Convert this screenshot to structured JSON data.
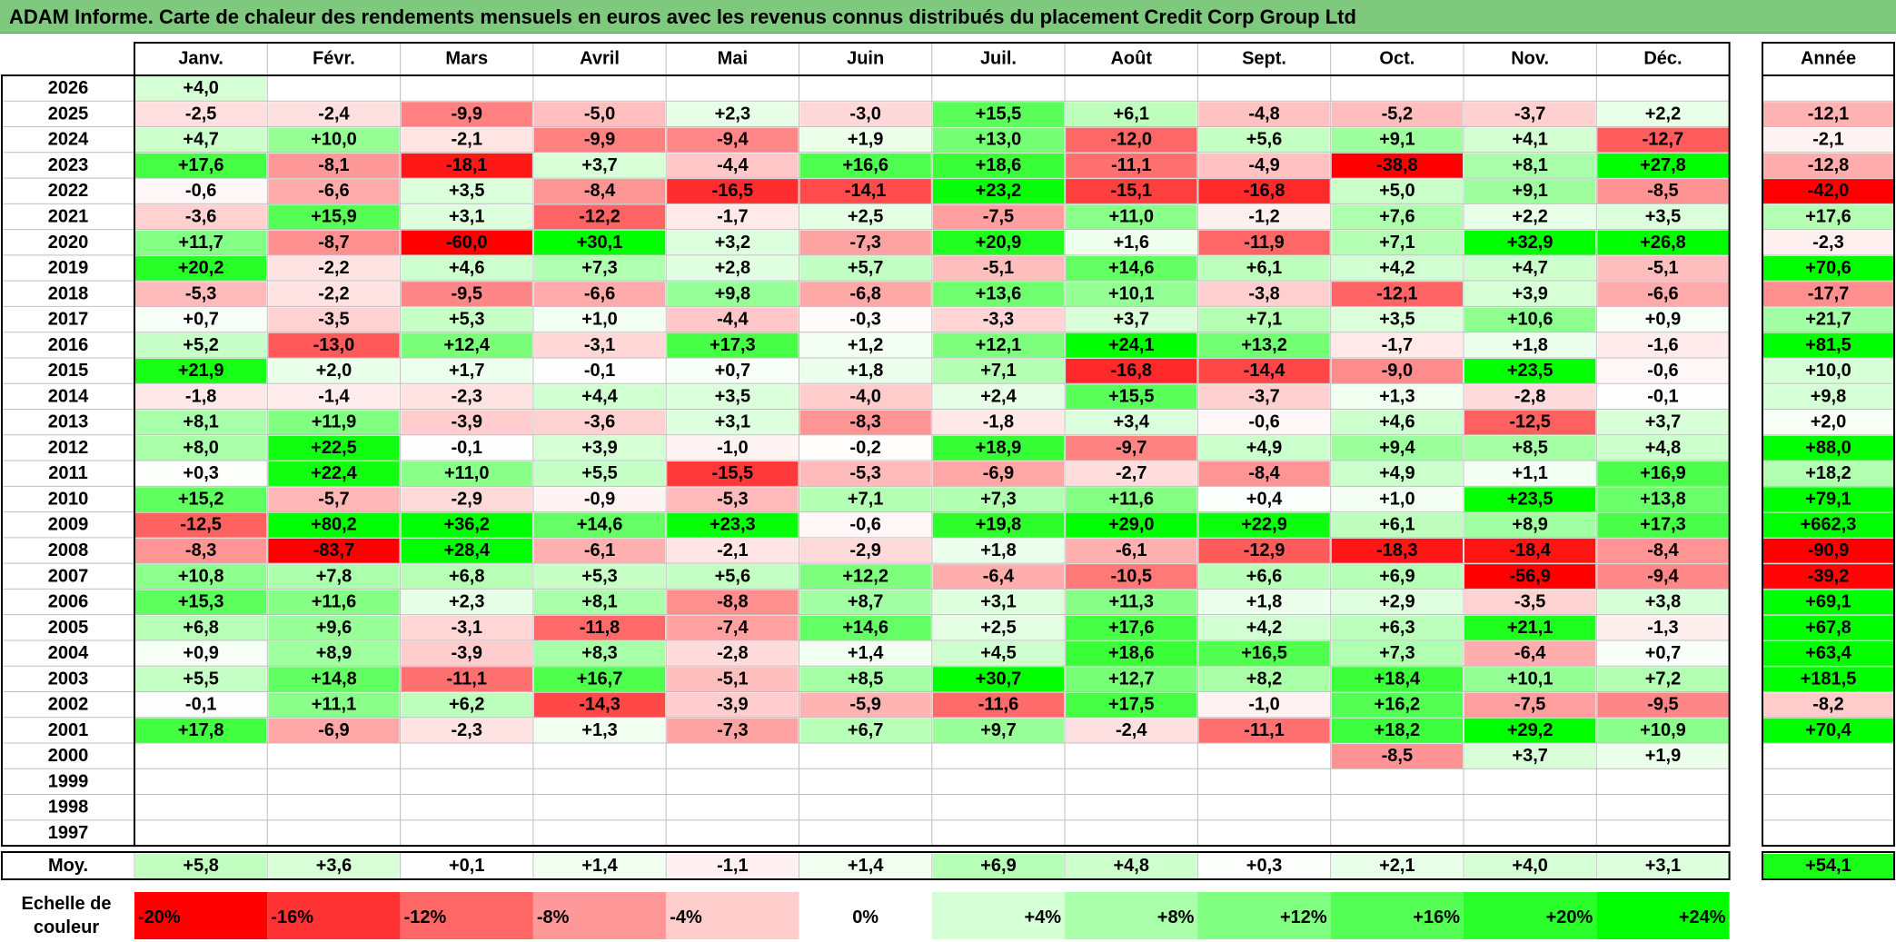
{
  "title": "ADAM Informe. Carte de chaleur des rendements mensuels en euros avec les revenus connus distribués du placement Credit Corp Group Ltd",
  "colors": {
    "title_bar": "#7fc97f",
    "negative_max": "#ff0000",
    "neutral": "#ffffff",
    "positive_max": "#00ff00"
  },
  "chart_data": {
    "type": "heatmap",
    "title": "ADAM Informe. Carte de chaleur des rendements mensuels en euros avec les revenus connus distribués du placement Credit Corp Group Ltd",
    "months": [
      "Janv.",
      "Févr.",
      "Mars",
      "Avril",
      "Mai",
      "Juin",
      "Juil.",
      "Août",
      "Sept.",
      "Oct.",
      "Nov.",
      "Déc."
    ],
    "annual_header": "Année",
    "rows": [
      {
        "year": "2026",
        "values": [
          "+4,0",
          "",
          "",
          "",
          "",
          "",
          "",
          "",
          "",
          "",
          "",
          ""
        ],
        "annual": ""
      },
      {
        "year": "2025",
        "values": [
          "-2,5",
          "-2,4",
          "-9,9",
          "-5,0",
          "+2,3",
          "-3,0",
          "+15,5",
          "+6,1",
          "-4,8",
          "-5,2",
          "-3,7",
          "+2,2"
        ],
        "annual": "-12,1"
      },
      {
        "year": "2024",
        "values": [
          "+4,7",
          "+10,0",
          "-2,1",
          "-9,9",
          "-9,4",
          "+1,9",
          "+13,0",
          "-12,0",
          "+5,6",
          "+9,1",
          "+4,1",
          "-12,7"
        ],
        "annual": "-2,1"
      },
      {
        "year": "2023",
        "values": [
          "+17,6",
          "-8,1",
          "-18,1",
          "+3,7",
          "-4,4",
          "+16,6",
          "+18,6",
          "-11,1",
          "-4,9",
          "-38,8",
          "+8,1",
          "+27,8"
        ],
        "annual": "-12,8"
      },
      {
        "year": "2022",
        "values": [
          "-0,6",
          "-6,6",
          "+3,5",
          "-8,4",
          "-16,5",
          "-14,1",
          "+23,2",
          "-15,1",
          "-16,8",
          "+5,0",
          "+9,1",
          "-8,5"
        ],
        "annual": "-42,0"
      },
      {
        "year": "2021",
        "values": [
          "-3,6",
          "+15,9",
          "+3,1",
          "-12,2",
          "-1,7",
          "+2,5",
          "-7,5",
          "+11,0",
          "-1,2",
          "+7,6",
          "+2,2",
          "+3,5"
        ],
        "annual": "+17,6"
      },
      {
        "year": "2020",
        "values": [
          "+11,7",
          "-8,7",
          "-60,0",
          "+30,1",
          "+3,2",
          "-7,3",
          "+20,9",
          "+1,6",
          "-11,9",
          "+7,1",
          "+32,9",
          "+26,8"
        ],
        "annual": "-2,3"
      },
      {
        "year": "2019",
        "values": [
          "+20,2",
          "-2,2",
          "+4,6",
          "+7,3",
          "+2,8",
          "+5,7",
          "-5,1",
          "+14,6",
          "+6,1",
          "+4,2",
          "+4,7",
          "-5,1"
        ],
        "annual": "+70,6"
      },
      {
        "year": "2018",
        "values": [
          "-5,3",
          "-2,2",
          "-9,5",
          "-6,6",
          "+9,8",
          "-6,8",
          "+13,6",
          "+10,1",
          "-3,8",
          "-12,1",
          "+3,9",
          "-6,6"
        ],
        "annual": "-17,7"
      },
      {
        "year": "2017",
        "values": [
          "+0,7",
          "-3,5",
          "+5,3",
          "+1,0",
          "-4,4",
          "-0,3",
          "-3,3",
          "+3,7",
          "+7,1",
          "+3,5",
          "+10,6",
          "+0,9"
        ],
        "annual": "+21,7"
      },
      {
        "year": "2016",
        "values": [
          "+5,2",
          "-13,0",
          "+12,4",
          "-3,1",
          "+17,3",
          "+1,2",
          "+12,1",
          "+24,1",
          "+13,2",
          "-1,7",
          "+1,8",
          "-1,6"
        ],
        "annual": "+81,5"
      },
      {
        "year": "2015",
        "values": [
          "+21,9",
          "+2,0",
          "+1,7",
          "-0,1",
          "+0,7",
          "+1,8",
          "+7,1",
          "-16,8",
          "-14,4",
          "-9,0",
          "+23,5",
          "-0,6"
        ],
        "annual": "+10,0"
      },
      {
        "year": "2014",
        "values": [
          "-1,8",
          "-1,4",
          "-2,3",
          "+4,4",
          "+3,5",
          "-4,0",
          "+2,4",
          "+15,5",
          "-3,7",
          "+1,3",
          "-2,8",
          "-0,1"
        ],
        "annual": "+9,8"
      },
      {
        "year": "2013",
        "values": [
          "+8,1",
          "+11,9",
          "-3,9",
          "-3,6",
          "+3,1",
          "-8,3",
          "-1,8",
          "+3,4",
          "-0,6",
          "+4,6",
          "-12,5",
          "+3,7"
        ],
        "annual": "+2,0"
      },
      {
        "year": "2012",
        "values": [
          "+8,0",
          "+22,5",
          "-0,1",
          "+3,9",
          "-1,0",
          "-0,2",
          "+18,9",
          "-9,7",
          "+4,9",
          "+9,4",
          "+8,5",
          "+4,8"
        ],
        "annual": "+88,0"
      },
      {
        "year": "2011",
        "values": [
          "+0,3",
          "+22,4",
          "+11,0",
          "+5,5",
          "-15,5",
          "-5,3",
          "-6,9",
          "-2,7",
          "-8,4",
          "+4,9",
          "+1,1",
          "+16,9"
        ],
        "annual": "+18,2"
      },
      {
        "year": "2010",
        "values": [
          "+15,2",
          "-5,7",
          "-2,9",
          "-0,9",
          "-5,3",
          "+7,1",
          "+7,3",
          "+11,6",
          "+0,4",
          "+1,0",
          "+23,5",
          "+13,8"
        ],
        "annual": "+79,1"
      },
      {
        "year": "2009",
        "values": [
          "-12,5",
          "+80,2",
          "+36,2",
          "+14,6",
          "+23,3",
          "-0,6",
          "+19,8",
          "+29,0",
          "+22,9",
          "+6,1",
          "+8,9",
          "+17,3"
        ],
        "annual": "+662,3"
      },
      {
        "year": "2008",
        "values": [
          "-8,3",
          "-83,7",
          "+28,4",
          "-6,1",
          "-2,1",
          "-2,9",
          "+1,8",
          "-6,1",
          "-12,9",
          "-18,3",
          "-18,4",
          "-8,4"
        ],
        "annual": "-90,9"
      },
      {
        "year": "2007",
        "values": [
          "+10,8",
          "+7,8",
          "+6,8",
          "+5,3",
          "+5,6",
          "+12,2",
          "-6,4",
          "-10,5",
          "+6,6",
          "+6,9",
          "-56,9",
          "-9,4"
        ],
        "annual": "-39,2"
      },
      {
        "year": "2006",
        "values": [
          "+15,3",
          "+11,6",
          "+2,3",
          "+8,1",
          "-8,8",
          "+8,7",
          "+3,1",
          "+11,3",
          "+1,8",
          "+2,9",
          "-3,5",
          "+3,8"
        ],
        "annual": "+69,1"
      },
      {
        "year": "2005",
        "values": [
          "+6,8",
          "+9,6",
          "-3,1",
          "-11,8",
          "-7,4",
          "+14,6",
          "+2,5",
          "+17,6",
          "+4,2",
          "+6,3",
          "+21,1",
          "-1,3"
        ],
        "annual": "+67,8"
      },
      {
        "year": "2004",
        "values": [
          "+0,9",
          "+8,9",
          "-3,9",
          "+8,3",
          "-2,8",
          "+1,4",
          "+4,5",
          "+18,6",
          "+16,5",
          "+7,3",
          "-6,4",
          "+0,7"
        ],
        "annual": "+63,4"
      },
      {
        "year": "2003",
        "values": [
          "+5,5",
          "+14,8",
          "-11,1",
          "+16,7",
          "-5,1",
          "+8,5",
          "+30,7",
          "+12,7",
          "+8,2",
          "+18,4",
          "+10,1",
          "+7,2"
        ],
        "annual": "+181,5"
      },
      {
        "year": "2002",
        "values": [
          "-0,1",
          "+11,1",
          "+6,2",
          "-14,3",
          "-3,9",
          "-5,9",
          "-11,6",
          "+17,5",
          "-1,0",
          "+16,2",
          "-7,5",
          "-9,5"
        ],
        "annual": "-8,2"
      },
      {
        "year": "2001",
        "values": [
          "+17,8",
          "-6,9",
          "-2,3",
          "+1,3",
          "-7,3",
          "+6,7",
          "+9,7",
          "-2,4",
          "-11,1",
          "+18,2",
          "+29,2",
          "+10,9"
        ],
        "annual": "+70,4"
      },
      {
        "year": "2000",
        "values": [
          "",
          "",
          "",
          "",
          "",
          "",
          "",
          "",
          "",
          "-8,5",
          "+3,7",
          "+1,9"
        ],
        "annual": ""
      },
      {
        "year": "1999",
        "values": [
          "",
          "",
          "",
          "",
          "",
          "",
          "",
          "",
          "",
          "",
          "",
          ""
        ],
        "annual": ""
      },
      {
        "year": "1998",
        "values": [
          "",
          "",
          "",
          "",
          "",
          "",
          "",
          "",
          "",
          "",
          "",
          ""
        ],
        "annual": ""
      },
      {
        "year": "1997",
        "values": [
          "",
          "",
          "",
          "",
          "",
          "",
          "",
          "",
          "",
          "",
          "",
          ""
        ],
        "annual": ""
      }
    ],
    "average": {
      "label": "Moy.",
      "values": [
        "+5,8",
        "+3,6",
        "+0,1",
        "+1,4",
        "-1,1",
        "+1,4",
        "+6,9",
        "+4,8",
        "+0,3",
        "+2,1",
        "+4,0",
        "+3,1"
      ],
      "annual": "+54,1"
    },
    "scale": {
      "label_line1": "Echelle de",
      "label_line2": "couleur",
      "values": [
        -20,
        -16,
        -12,
        -8,
        -4,
        0,
        4,
        8,
        12,
        16,
        20,
        24
      ],
      "labels": [
        "-20%",
        "-16%",
        "-12%",
        "-8%",
        "-4%",
        "0%",
        "+4%",
        "+8%",
        "+12%",
        "+16%",
        "+20%",
        "+24%"
      ]
    }
  }
}
